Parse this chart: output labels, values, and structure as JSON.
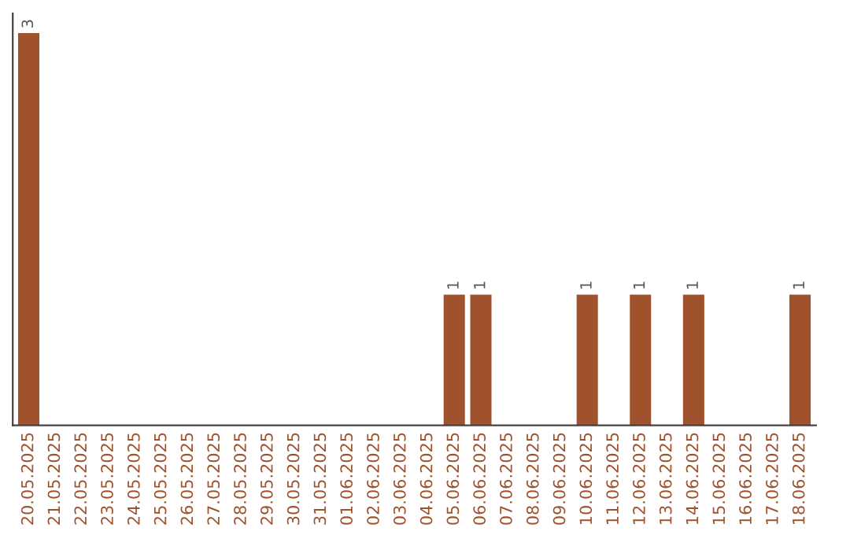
{
  "chart_data": {
    "type": "bar",
    "categories": [
      "20.05.2025",
      "21.05.2025",
      "22.05.2025",
      "23.05.2025",
      "24.05.2025",
      "25.05.2025",
      "26.05.2025",
      "27.05.2025",
      "28.05.2025",
      "29.05.2025",
      "30.05.2025",
      "31.05.2025",
      "01.06.2025",
      "02.06.2025",
      "03.06.2025",
      "04.06.2025",
      "05.06.2025",
      "06.06.2025",
      "07.06.2025",
      "08.06.2025",
      "09.06.2025",
      "10.06.2025",
      "11.06.2025",
      "12.06.2025",
      "13.06.2025",
      "14.06.2025",
      "15.06.2025",
      "16.06.2025",
      "17.06.2025",
      "18.06.2025"
    ],
    "values": [
      3,
      0,
      0,
      0,
      0,
      0,
      0,
      0,
      0,
      0,
      0,
      0,
      0,
      0,
      0,
      0,
      1,
      1,
      0,
      0,
      0,
      1,
      0,
      1,
      0,
      1,
      0,
      0,
      0,
      1
    ],
    "value_labels": [
      "3",
      null,
      null,
      null,
      null,
      null,
      null,
      null,
      null,
      null,
      null,
      null,
      null,
      null,
      null,
      null,
      "1",
      "1",
      null,
      null,
      null,
      "1",
      null,
      "1",
      null,
      "1",
      null,
      null,
      null,
      "1"
    ],
    "color": "#a0522d",
    "grid": false,
    "legend": false
  }
}
